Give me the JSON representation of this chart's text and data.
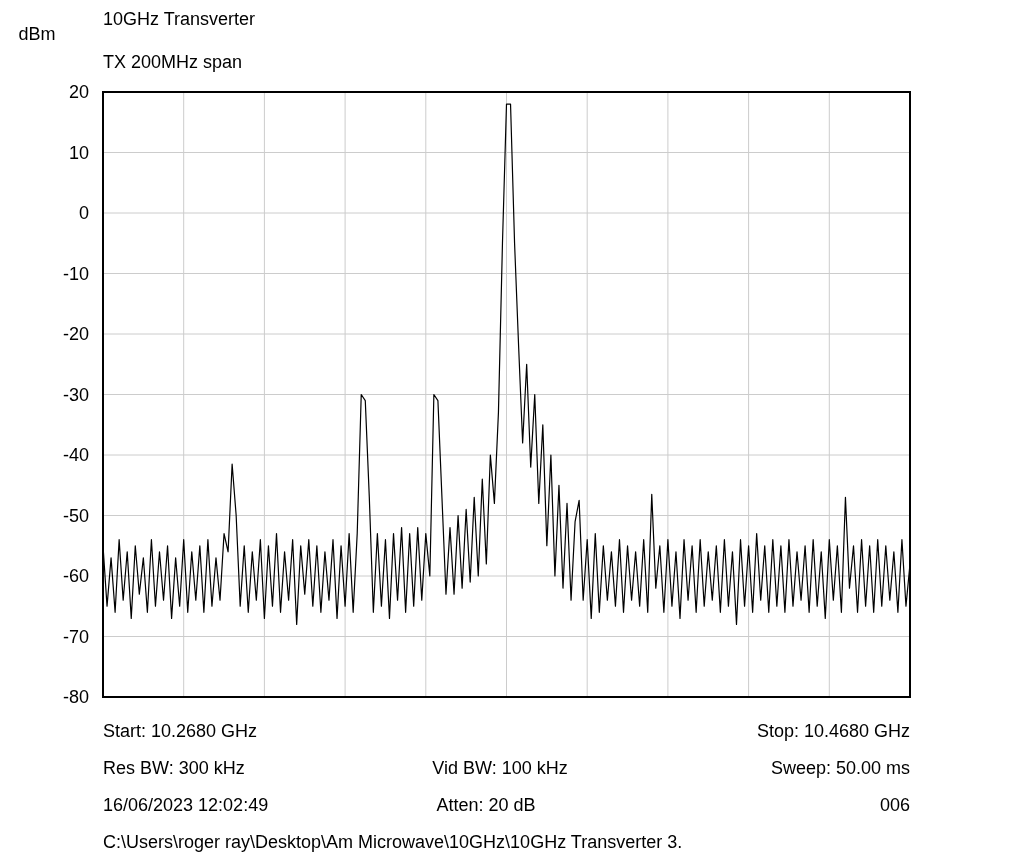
{
  "chart_data": {
    "type": "line",
    "title": "10GHz Transverter",
    "subtitle": "TX 200MHz span",
    "ylabel": "dBm",
    "categories": [
      null,
      null,
      null,
      null,
      null,
      null,
      null,
      null,
      null,
      null,
      null,
      null,
      null,
      null,
      null,
      null,
      null,
      null,
      null,
      null,
      null,
      null,
      null,
      null,
      null,
      null,
      null,
      null,
      null,
      null,
      null,
      null,
      null,
      null,
      null,
      null,
      null,
      null,
      null,
      null,
      null,
      null,
      null,
      null,
      null,
      null,
      null,
      null,
      null,
      null,
      null,
      null,
      null,
      null,
      null,
      null,
      null,
      null,
      null,
      null,
      null,
      null,
      null,
      null,
      null,
      null,
      null,
      null,
      null,
      null,
      null,
      null,
      null,
      null,
      null,
      null,
      null,
      null,
      null,
      null,
      null,
      null,
      null,
      null,
      null,
      null,
      null,
      null,
      null,
      null,
      null,
      null,
      null,
      null,
      null,
      null,
      null,
      null,
      null,
      null,
      null,
      null,
      null,
      null,
      null,
      null,
      null,
      null,
      null,
      null,
      null,
      null,
      null,
      null,
      null,
      null,
      null,
      null,
      null,
      null,
      null,
      null,
      null,
      null,
      null,
      null,
      null,
      null,
      null,
      null,
      null,
      null,
      null,
      null,
      null,
      null,
      null,
      null,
      null,
      null,
      null,
      null,
      null,
      null,
      null,
      null,
      null,
      null,
      null,
      null,
      null,
      null,
      null,
      null,
      null,
      null,
      null,
      null,
      null,
      null,
      null,
      null,
      null,
      null,
      null,
      null,
      null,
      null,
      null,
      null,
      null,
      null,
      null,
      null,
      null,
      null,
      null,
      null,
      null,
      null,
      null,
      null,
      null,
      null,
      null,
      null,
      null,
      null,
      null,
      null,
      null,
      null,
      null,
      null,
      null,
      null,
      null,
      null,
      null,
      null,
      null
    ],
    "ylim": [
      -80,
      20
    ],
    "yticks": [
      -80,
      -70,
      -60,
      -50,
      -40,
      -30,
      -20,
      -10,
      0,
      10,
      20
    ],
    "grid": true,
    "series": [
      {
        "color": "#000000",
        "values": [
          -55,
          -65,
          -57,
          -66,
          -54,
          -64,
          -56,
          -67,
          -55,
          -63,
          -57,
          -66,
          -54,
          -65,
          -56,
          -64,
          -55,
          -67,
          -57,
          -65,
          -54,
          -66,
          -56,
          -64,
          -55,
          -66,
          -54,
          -65,
          -57,
          -64,
          -53,
          -56,
          -41.5,
          -50,
          -65,
          -55,
          -66,
          -56,
          -64,
          -54,
          -67,
          -55,
          -65,
          -53,
          -66,
          -56,
          -64,
          -54,
          -68,
          -55,
          -63,
          -54,
          -65,
          -55,
          -66,
          -56,
          -64,
          -54,
          -67,
          -55,
          -65,
          -53,
          -66,
          -53,
          -30,
          -31,
          -47,
          -66,
          -53,
          -65,
          -54,
          -67,
          -53,
          -64,
          -52,
          -66,
          -53,
          -65,
          -52,
          -64,
          -53,
          -60,
          -30,
          -31,
          -47,
          -63,
          -52,
          -63,
          -50,
          -62,
          -49,
          -61,
          -47,
          -60,
          -44,
          -58,
          -40,
          -48,
          -33,
          -5,
          18,
          18,
          -5,
          -22,
          -38,
          -25,
          -42,
          -30,
          -48,
          -35,
          -55,
          -40,
          -60,
          -45,
          -62,
          -48,
          -64,
          -51,
          -47.5,
          -64,
          -54,
          -67,
          -53,
          -66,
          -55,
          -64,
          -56,
          -65,
          -54,
          -66,
          -55,
          -64,
          -56,
          -65,
          -54,
          -66,
          -46.5,
          -62,
          -55,
          -66,
          -54,
          -65,
          -56,
          -67,
          -54,
          -64,
          -55,
          -66,
          -54,
          -65,
          -56,
          -64,
          -55,
          -66,
          -54,
          -65,
          -56,
          -68,
          -54,
          -65,
          -55,
          -66,
          -53,
          -64,
          -55,
          -66,
          -54,
          -65,
          -55,
          -66,
          -54,
          -65,
          -56,
          -64,
          -55,
          -66,
          -54,
          -65,
          -56,
          -67,
          -54,
          -64,
          -55,
          -66,
          -47,
          -62,
          -55,
          -66,
          -54,
          -65,
          -55,
          -66,
          -54,
          -65,
          -55,
          -64,
          -56,
          -66,
          -54,
          -65,
          -58
        ]
      }
    ],
    "annotations": [
      "Start: 10.2680 GHz",
      "Stop: 10.4680 GHz",
      "Res BW: 300 kHz",
      "Vid BW: 100 kHz",
      "Sweep: 50.00 ms",
      "16/06/2023 12:02:49",
      "Atten: 20 dB",
      "006",
      "C:\\Users\\roger ray\\Desktop\\Am Microwave\\10GHz\\10GHz Transverter 3."
    ]
  }
}
